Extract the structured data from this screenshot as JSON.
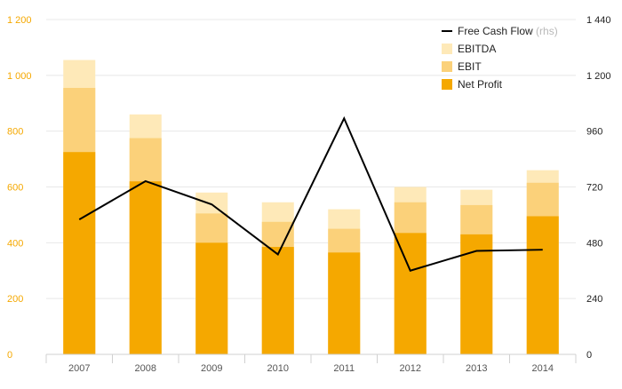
{
  "chart_data": {
    "type": "bar",
    "stacked": true,
    "categories": [
      "2007",
      "2008",
      "2009",
      "2010",
      "2011",
      "2012",
      "2013",
      "2014"
    ],
    "series": [
      {
        "name": "Net Profit",
        "values": [
          725,
          620,
          400,
          385,
          365,
          435,
          430,
          495
        ],
        "color": "#f5a800"
      },
      {
        "name": "EBIT",
        "values": [
          955,
          775,
          505,
          475,
          450,
          545,
          535,
          615
        ],
        "color": "#fbd17a"
      },
      {
        "name": "EBITDA",
        "values": [
          1055,
          860,
          580,
          545,
          520,
          600,
          590,
          660
        ],
        "color": "#fee9b8"
      }
    ],
    "line_series": {
      "name": "Free Cash Flow",
      "axis": "right",
      "axis_note": "(rhs)",
      "values": [
        580,
        745,
        645,
        430,
        1015,
        360,
        445,
        450
      ],
      "color": "#000000"
    },
    "y_left": {
      "min": 0,
      "max": 1200,
      "ticks": [
        0,
        200,
        400,
        600,
        800,
        1000,
        1200
      ],
      "tick_labels": [
        "0",
        "200",
        "400",
        "600",
        "800",
        "1 000",
        "1 200"
      ]
    },
    "y_right": {
      "min": 0,
      "max": 1440,
      "ticks": [
        0,
        240,
        480,
        720,
        960,
        1200,
        1440
      ],
      "tick_labels": [
        "0",
        "240",
        "480",
        "720",
        "960",
        "1 200",
        "1 440"
      ]
    },
    "grid": true,
    "legend_position": "top-right",
    "legend": [
      {
        "label": "Free Cash Flow",
        "note": "(rhs)",
        "kind": "line",
        "color": "#000000"
      },
      {
        "label": "EBITDA",
        "kind": "box",
        "color": "#fee9b8"
      },
      {
        "label": "EBIT",
        "kind": "box",
        "color": "#fbd17a"
      },
      {
        "label": "Net Profit",
        "kind": "box",
        "color": "#f5a800"
      }
    ]
  }
}
